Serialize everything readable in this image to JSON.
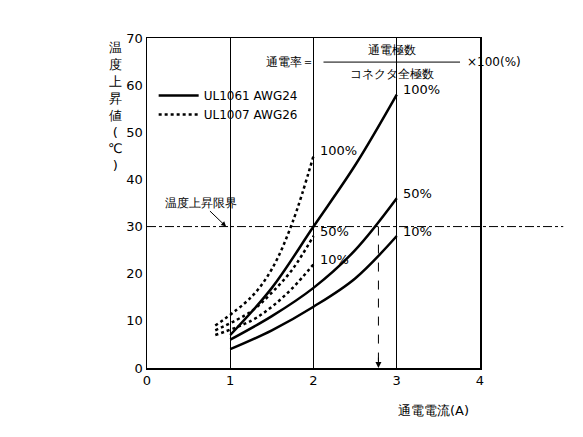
{
  "chart_data": {
    "type": "line",
    "x_label": "通電電流(A)",
    "y_label": "温度上昇値(℃)",
    "xlim": [
      0,
      4
    ],
    "xticks": [
      0,
      1,
      2,
      3,
      4
    ],
    "ylim": [
      0,
      70
    ],
    "yticks": [
      0,
      10,
      20,
      30,
      40,
      50,
      60,
      70
    ],
    "grid": "x",
    "legend": "upper left",
    "formula": {
      "lhs": "通電率＝",
      "numerator": "通電極数",
      "denominator": "コネクタ全極数",
      "rhs": "×100(%)"
    },
    "limit": {
      "label": "温度上昇限界",
      "value": 30
    },
    "readout": {
      "x": 2.78,
      "y": 30
    },
    "series": [
      {
        "name": "UL1061 AWG24",
        "color": "#000000",
        "line_style": "solid",
        "curves": [
          {
            "label": "100%",
            "x": [
              1,
              1.5,
              2,
              2.5,
              3
            ],
            "values": [
              7,
              17,
              30,
              43,
              58
            ]
          },
          {
            "label": "50%",
            "x": [
              1,
              1.5,
              2,
              2.5,
              3
            ],
            "values": [
              6,
              11,
              17,
              25,
              36
            ]
          },
          {
            "label": "10%",
            "x": [
              1,
              1.5,
              2,
              2.5,
              3
            ],
            "values": [
              4,
              8,
              13,
              19,
              28
            ]
          }
        ]
      },
      {
        "name": "UL1007 AWG26",
        "color": "#000000",
        "line_style": "dotted",
        "curves": [
          {
            "label": "100%",
            "x": [
              0.82,
              1.25,
              1.5,
              1.75,
              2
            ],
            "values": [
              9,
              15,
              21,
              31,
              45
            ]
          },
          {
            "label": "50%",
            "x": [
              0.82,
              1.25,
              1.5,
              1.75,
              2
            ],
            "values": [
              8,
              12,
              16,
              21,
              28
            ]
          },
          {
            "label": "10%",
            "x": [
              0.82,
              1.25,
              1.5,
              1.75,
              2
            ],
            "values": [
              7,
              10,
              13,
              17,
              22
            ]
          }
        ]
      }
    ]
  }
}
